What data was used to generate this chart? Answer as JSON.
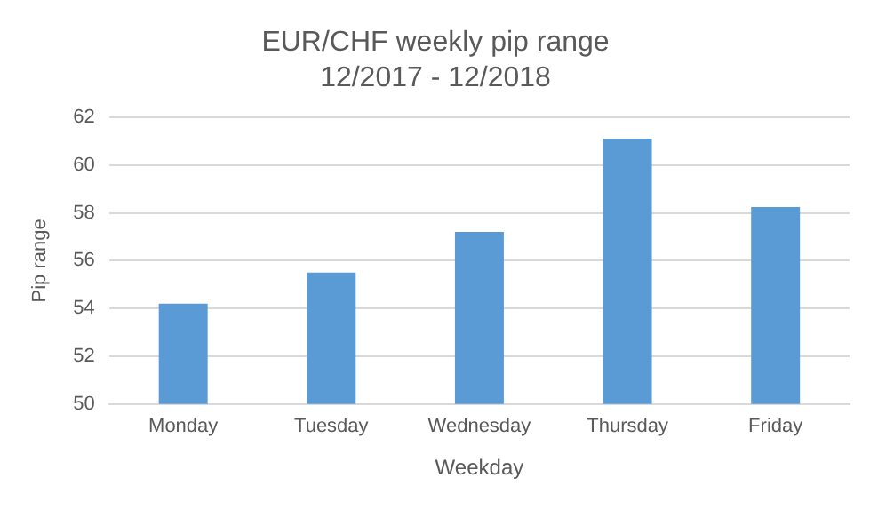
{
  "chart_data": {
    "type": "bar",
    "title": "EUR/CHF weekly pip range",
    "subtitle": "12/2017 - 12/2018",
    "xlabel": "Weekday",
    "ylabel": "Pip range",
    "categories": [
      "Monday",
      "Tuesday",
      "Wednesday",
      "Thursday",
      "Friday"
    ],
    "values": [
      54.2,
      55.5,
      57.2,
      61.1,
      58.25
    ],
    "color": "#5b9bd5",
    "ylim": [
      50,
      62
    ],
    "yticks": [
      50,
      52,
      54,
      56,
      58,
      60,
      62
    ],
    "grid": "y",
    "legend": false
  }
}
